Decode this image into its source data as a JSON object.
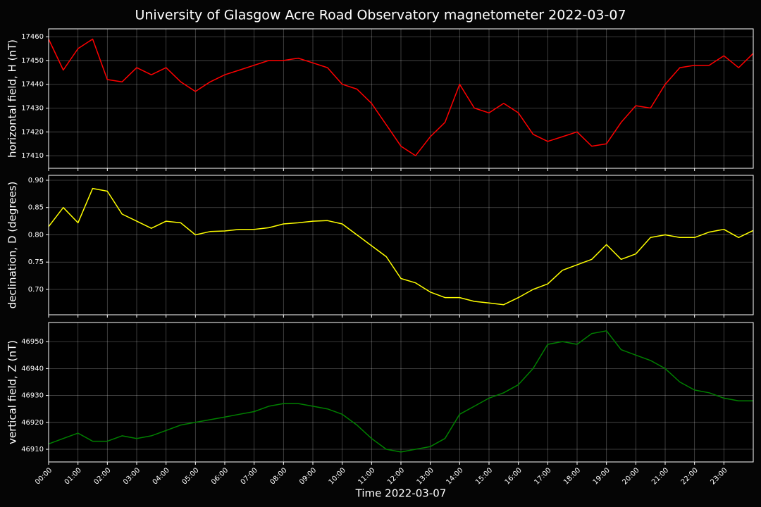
{
  "chart_data": [
    {
      "type": "line",
      "title": "University of Glasgow Acre Road Observatory magnetometer 2022-03-07",
      "ylabel": "horizontal field, H (nT)",
      "color": "#ff0000",
      "grid": true,
      "x": [
        0,
        0.5,
        1,
        1.5,
        2,
        2.5,
        3,
        3.5,
        4,
        4.5,
        5,
        5.5,
        6,
        6.5,
        7,
        7.5,
        8,
        8.5,
        9,
        9.5,
        10,
        10.5,
        11,
        11.5,
        12,
        12.5,
        13,
        13.5,
        14,
        14.5,
        15,
        15.5,
        16,
        16.5,
        17,
        17.5,
        18,
        18.5,
        19,
        19.5,
        20,
        20.5,
        21,
        21.5,
        22,
        22.5,
        23,
        23.5,
        24
      ],
      "values": [
        17459,
        17446,
        17455,
        17459,
        17442,
        17441,
        17447,
        17444,
        17447,
        17441,
        17437,
        17441,
        17444,
        17446,
        17448,
        17450,
        17450,
        17451,
        17449,
        17447,
        17440,
        17438,
        17432,
        17423,
        17414,
        17410,
        17418,
        17424,
        17440,
        17430,
        17428,
        17432,
        17428,
        17419,
        17416,
        17418,
        17420,
        17414,
        17415,
        17424,
        17431,
        17430,
        17440,
        17447,
        17448,
        17448,
        17452,
        17447,
        17453
      ],
      "xlim": [
        0,
        24
      ],
      "xticks": [
        0,
        1,
        2,
        3,
        4,
        5,
        6,
        7,
        8,
        9,
        10,
        11,
        12,
        13,
        14,
        15,
        16,
        17,
        18,
        19,
        20,
        21,
        22,
        23
      ],
      "ylim": [
        17404.7,
        17463.3
      ],
      "yticks": [
        17410,
        17420,
        17430,
        17440,
        17450,
        17460
      ]
    },
    {
      "type": "line",
      "ylabel": "declination, D (degrees)",
      "color": "#ffff00",
      "grid": true,
      "x": [
        0,
        0.5,
        1,
        1.5,
        2,
        2.5,
        3,
        3.5,
        4,
        4.5,
        5,
        5.5,
        6,
        6.5,
        7,
        7.5,
        8,
        8.5,
        9,
        9.5,
        10,
        10.5,
        11,
        11.5,
        12,
        12.5,
        13,
        13.5,
        14,
        14.5,
        15,
        15.5,
        16,
        16.5,
        17,
        17.5,
        18,
        18.5,
        19,
        19.5,
        20,
        20.5,
        21,
        21.5,
        22,
        22.5,
        23,
        23.5,
        24
      ],
      "values": [
        0.815,
        0.85,
        0.822,
        0.885,
        0.88,
        0.838,
        0.825,
        0.812,
        0.825,
        0.822,
        0.8,
        0.806,
        0.807,
        0.81,
        0.81,
        0.813,
        0.82,
        0.822,
        0.825,
        0.826,
        0.82,
        0.8,
        0.78,
        0.76,
        0.72,
        0.712,
        0.695,
        0.685,
        0.685,
        0.678,
        0.675,
        0.672,
        0.685,
        0.7,
        0.71,
        0.735,
        0.745,
        0.755,
        0.782,
        0.755,
        0.765,
        0.795,
        0.8,
        0.795,
        0.795,
        0.805,
        0.81,
        0.795,
        0.808
      ],
      "xlim": [
        0,
        24
      ],
      "xticks": [
        0,
        1,
        2,
        3,
        4,
        5,
        6,
        7,
        8,
        9,
        10,
        11,
        12,
        13,
        14,
        15,
        16,
        17,
        18,
        19,
        20,
        21,
        22,
        23
      ],
      "ylim": [
        0.6535,
        0.909
      ],
      "yticks": [
        {
          "value": 0.7,
          "label": "0.70"
        },
        {
          "value": 0.75,
          "label": "0.75"
        },
        {
          "value": 0.8,
          "label": "0.80"
        },
        {
          "value": 0.85,
          "label": "0.85"
        },
        {
          "value": 0.9,
          "label": "0.90"
        }
      ]
    },
    {
      "type": "line",
      "ylabel": "vertical field, Z (nT)",
      "xlabel": "Time 2022-03-07",
      "color": "#008000",
      "grid": true,
      "x": [
        0,
        0.5,
        1,
        1.5,
        2,
        2.5,
        3,
        3.5,
        4,
        4.5,
        5,
        5.5,
        6,
        6.5,
        7,
        7.5,
        8,
        8.5,
        9,
        9.5,
        10,
        10.5,
        11,
        11.5,
        12,
        12.5,
        13,
        13.5,
        14,
        14.5,
        15,
        15.5,
        16,
        16.5,
        17,
        17.5,
        18,
        18.5,
        19,
        19.5,
        20,
        20.5,
        21,
        21.5,
        22,
        22.5,
        23,
        23.5,
        24
      ],
      "values": [
        46912,
        46914,
        46916,
        46913,
        46913,
        46915,
        46914,
        46915,
        46917,
        46919,
        46920,
        46921,
        46922,
        46923,
        46924,
        46926,
        46927,
        46927,
        46926,
        46925,
        46923,
        46919,
        46914,
        46910,
        46909,
        46910,
        46911,
        46914,
        46923,
        46926,
        46929,
        46931,
        46934,
        46940,
        46949,
        46950,
        46949,
        46953,
        46954,
        46947,
        46945,
        46943,
        46940,
        46935,
        46932,
        46931,
        46929,
        46928,
        46928
      ],
      "xlim": [
        0,
        24
      ],
      "xticks": [
        {
          "value": 0,
          "label": "00:00"
        },
        {
          "value": 1,
          "label": "01:00"
        },
        {
          "value": 2,
          "label": "02:00"
        },
        {
          "value": 3,
          "label": "03:00"
        },
        {
          "value": 4,
          "label": "04:00"
        },
        {
          "value": 5,
          "label": "05:00"
        },
        {
          "value": 6,
          "label": "06:00"
        },
        {
          "value": 7,
          "label": "07:00"
        },
        {
          "value": 8,
          "label": "08:00"
        },
        {
          "value": 9,
          "label": "09:00"
        },
        {
          "value": 10,
          "label": "10:00"
        },
        {
          "value": 11,
          "label": "11:00"
        },
        {
          "value": 12,
          "label": "12:00"
        },
        {
          "value": 13,
          "label": "13:00"
        },
        {
          "value": 14,
          "label": "14:00"
        },
        {
          "value": 15,
          "label": "15:00"
        },
        {
          "value": 16,
          "label": "16:00"
        },
        {
          "value": 17,
          "label": "17:00"
        },
        {
          "value": 18,
          "label": "18:00"
        },
        {
          "value": 19,
          "label": "19:00"
        },
        {
          "value": 20,
          "label": "20:00"
        },
        {
          "value": 21,
          "label": "21:00"
        },
        {
          "value": 22,
          "label": "22:00"
        },
        {
          "value": 23,
          "label": "23:00"
        }
      ],
      "ylim": [
        46905.3,
        46957.1
      ],
      "yticks": [
        46910,
        46920,
        46930,
        46940,
        46950
      ]
    }
  ]
}
